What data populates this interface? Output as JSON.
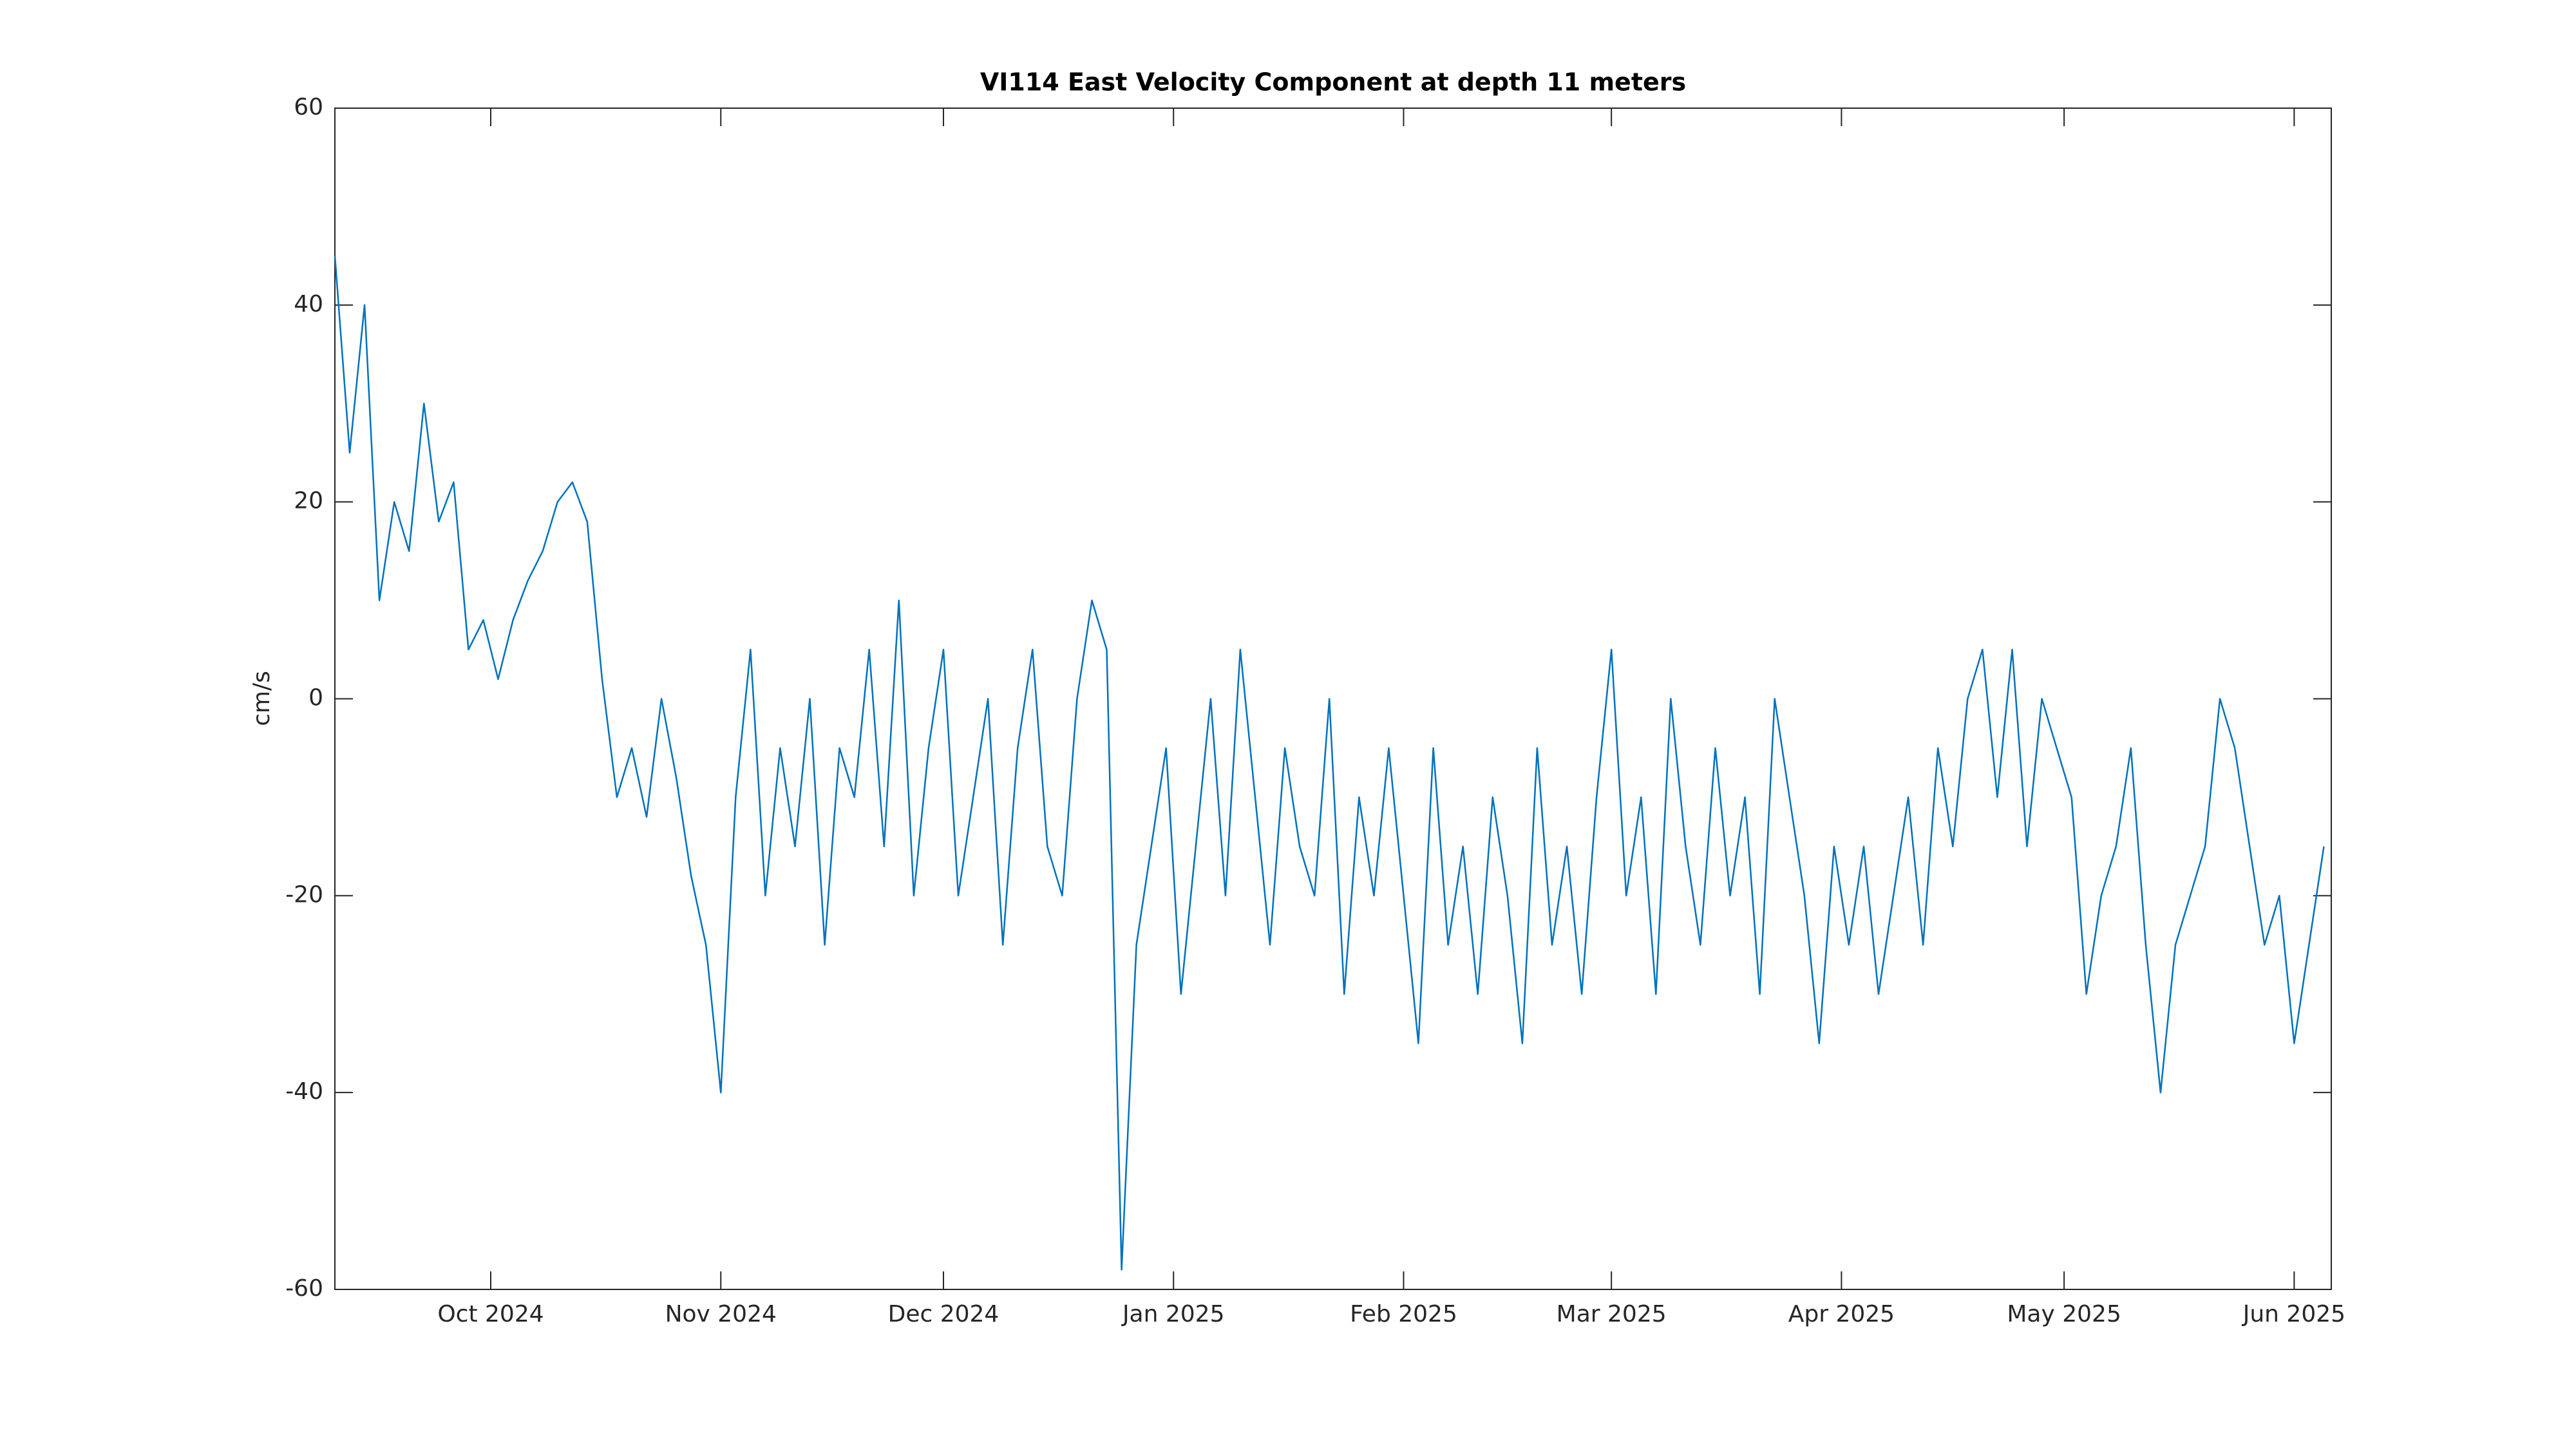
{
  "chart_data": {
    "type": "line",
    "title": "VI114 East Velocity Component at depth 11 meters",
    "y_label": "cm/s",
    "x": [
      "2024-09-10",
      "2024-09-12",
      "2024-09-14",
      "2024-09-16",
      "2024-09-18",
      "2024-09-20",
      "2024-09-22",
      "2024-09-24",
      "2024-09-26",
      "2024-09-28",
      "2024-09-30",
      "2024-10-02",
      "2024-10-04",
      "2024-10-06",
      "2024-10-08",
      "2024-10-10",
      "2024-10-12",
      "2024-10-14",
      "2024-10-16",
      "2024-10-18",
      "2024-10-20",
      "2024-10-22",
      "2024-10-24",
      "2024-10-26",
      "2024-10-28",
      "2024-10-30",
      "2024-11-01",
      "2024-11-03",
      "2024-11-05",
      "2024-11-07",
      "2024-11-09",
      "2024-11-11",
      "2024-11-13",
      "2024-11-15",
      "2024-11-17",
      "2024-11-19",
      "2024-11-21",
      "2024-11-23",
      "2024-11-25",
      "2024-11-27",
      "2024-11-29",
      "2024-12-01",
      "2024-12-03",
      "2024-12-05",
      "2024-12-07",
      "2024-12-09",
      "2024-12-11",
      "2024-12-13",
      "2024-12-15",
      "2024-12-17",
      "2024-12-19",
      "2024-12-21",
      "2024-12-23",
      "2024-12-25",
      "2024-12-27",
      "2024-12-29",
      "2024-12-31",
      "2025-01-02",
      "2025-01-04",
      "2025-01-06",
      "2025-01-08",
      "2025-01-10",
      "2025-01-12",
      "2025-01-14",
      "2025-01-16",
      "2025-01-18",
      "2025-01-20",
      "2025-01-22",
      "2025-01-24",
      "2025-01-26",
      "2025-01-28",
      "2025-01-30",
      "2025-02-01",
      "2025-02-03",
      "2025-02-05",
      "2025-02-07",
      "2025-02-09",
      "2025-02-11",
      "2025-02-13",
      "2025-02-15",
      "2025-02-17",
      "2025-02-19",
      "2025-02-21",
      "2025-02-23",
      "2025-02-25",
      "2025-02-27",
      "2025-03-01",
      "2025-03-03",
      "2025-03-05",
      "2025-03-07",
      "2025-03-09",
      "2025-03-11",
      "2025-03-13",
      "2025-03-15",
      "2025-03-17",
      "2025-03-19",
      "2025-03-21",
      "2025-03-23",
      "2025-03-25",
      "2025-03-27",
      "2025-03-29",
      "2025-03-31",
      "2025-04-02",
      "2025-04-04",
      "2025-04-06",
      "2025-04-08",
      "2025-04-10",
      "2025-04-12",
      "2025-04-14",
      "2025-04-16",
      "2025-04-18",
      "2025-04-20",
      "2025-04-22",
      "2025-04-24",
      "2025-04-26",
      "2025-04-28",
      "2025-04-30",
      "2025-05-02",
      "2025-05-04",
      "2025-05-06",
      "2025-05-08",
      "2025-05-10",
      "2025-05-12",
      "2025-05-14",
      "2025-05-16",
      "2025-05-18",
      "2025-05-20",
      "2025-05-22",
      "2025-05-24",
      "2025-05-26",
      "2025-05-28",
      "2025-05-30",
      "2025-06-01",
      "2025-06-03",
      "2025-06-05"
    ],
    "series": [
      {
        "name": "East velocity",
        "color": "#0072bd",
        "values": [
          45,
          25,
          40,
          10,
          20,
          15,
          30,
          18,
          22,
          5,
          8,
          2,
          8,
          12,
          15,
          20,
          22,
          18,
          2,
          -10,
          -5,
          -12,
          0,
          -8,
          -18,
          -25,
          -40,
          -10,
          5,
          -20,
          -5,
          -15,
          0,
          -25,
          -5,
          -10,
          5,
          -15,
          10,
          -20,
          -5,
          5,
          -20,
          -10,
          0,
          -25,
          -5,
          5,
          -15,
          -20,
          0,
          10,
          5,
          -58,
          -25,
          -15,
          -5,
          -30,
          -15,
          0,
          -20,
          5,
          -10,
          -25,
          -5,
          -15,
          -20,
          0,
          -30,
          -10,
          -20,
          -5,
          -20,
          -35,
          -5,
          -25,
          -15,
          -30,
          -10,
          -20,
          -35,
          -5,
          -25,
          -15,
          -30,
          -10,
          5,
          -20,
          -10,
          -30,
          0,
          -15,
          -25,
          -5,
          -20,
          -10,
          -30,
          0,
          -10,
          -20,
          -35,
          -15,
          -25,
          -15,
          -30,
          -20,
          -10,
          -25,
          -5,
          -15,
          0,
          5,
          -10,
          5,
          -15,
          0,
          -5,
          -10,
          -30,
          -20,
          -15,
          -5,
          -25,
          -40,
          -25,
          -20,
          -15,
          0,
          -5,
          -15,
          -25,
          -20,
          -35,
          -25,
          -15
        ]
      }
    ],
    "xlim": [
      "2024-09-10",
      "2025-06-06"
    ],
    "xticks": [
      {
        "value": "2024-10-01",
        "label": "Oct 2024"
      },
      {
        "value": "2024-11-01",
        "label": "Nov 2024"
      },
      {
        "value": "2024-12-01",
        "label": "Dec 2024"
      },
      {
        "value": "2025-01-01",
        "label": "Jan 2025"
      },
      {
        "value": "2025-02-01",
        "label": "Feb 2025"
      },
      {
        "value": "2025-03-01",
        "label": "Mar 2025"
      },
      {
        "value": "2025-04-01",
        "label": "Apr 2025"
      },
      {
        "value": "2025-05-01",
        "label": "May 2025"
      },
      {
        "value": "2025-06-01",
        "label": "Jun 2025"
      }
    ],
    "ylim": [
      -60,
      60
    ],
    "yticks": [
      -60,
      -40,
      -20,
      0,
      20,
      40,
      60
    ]
  }
}
